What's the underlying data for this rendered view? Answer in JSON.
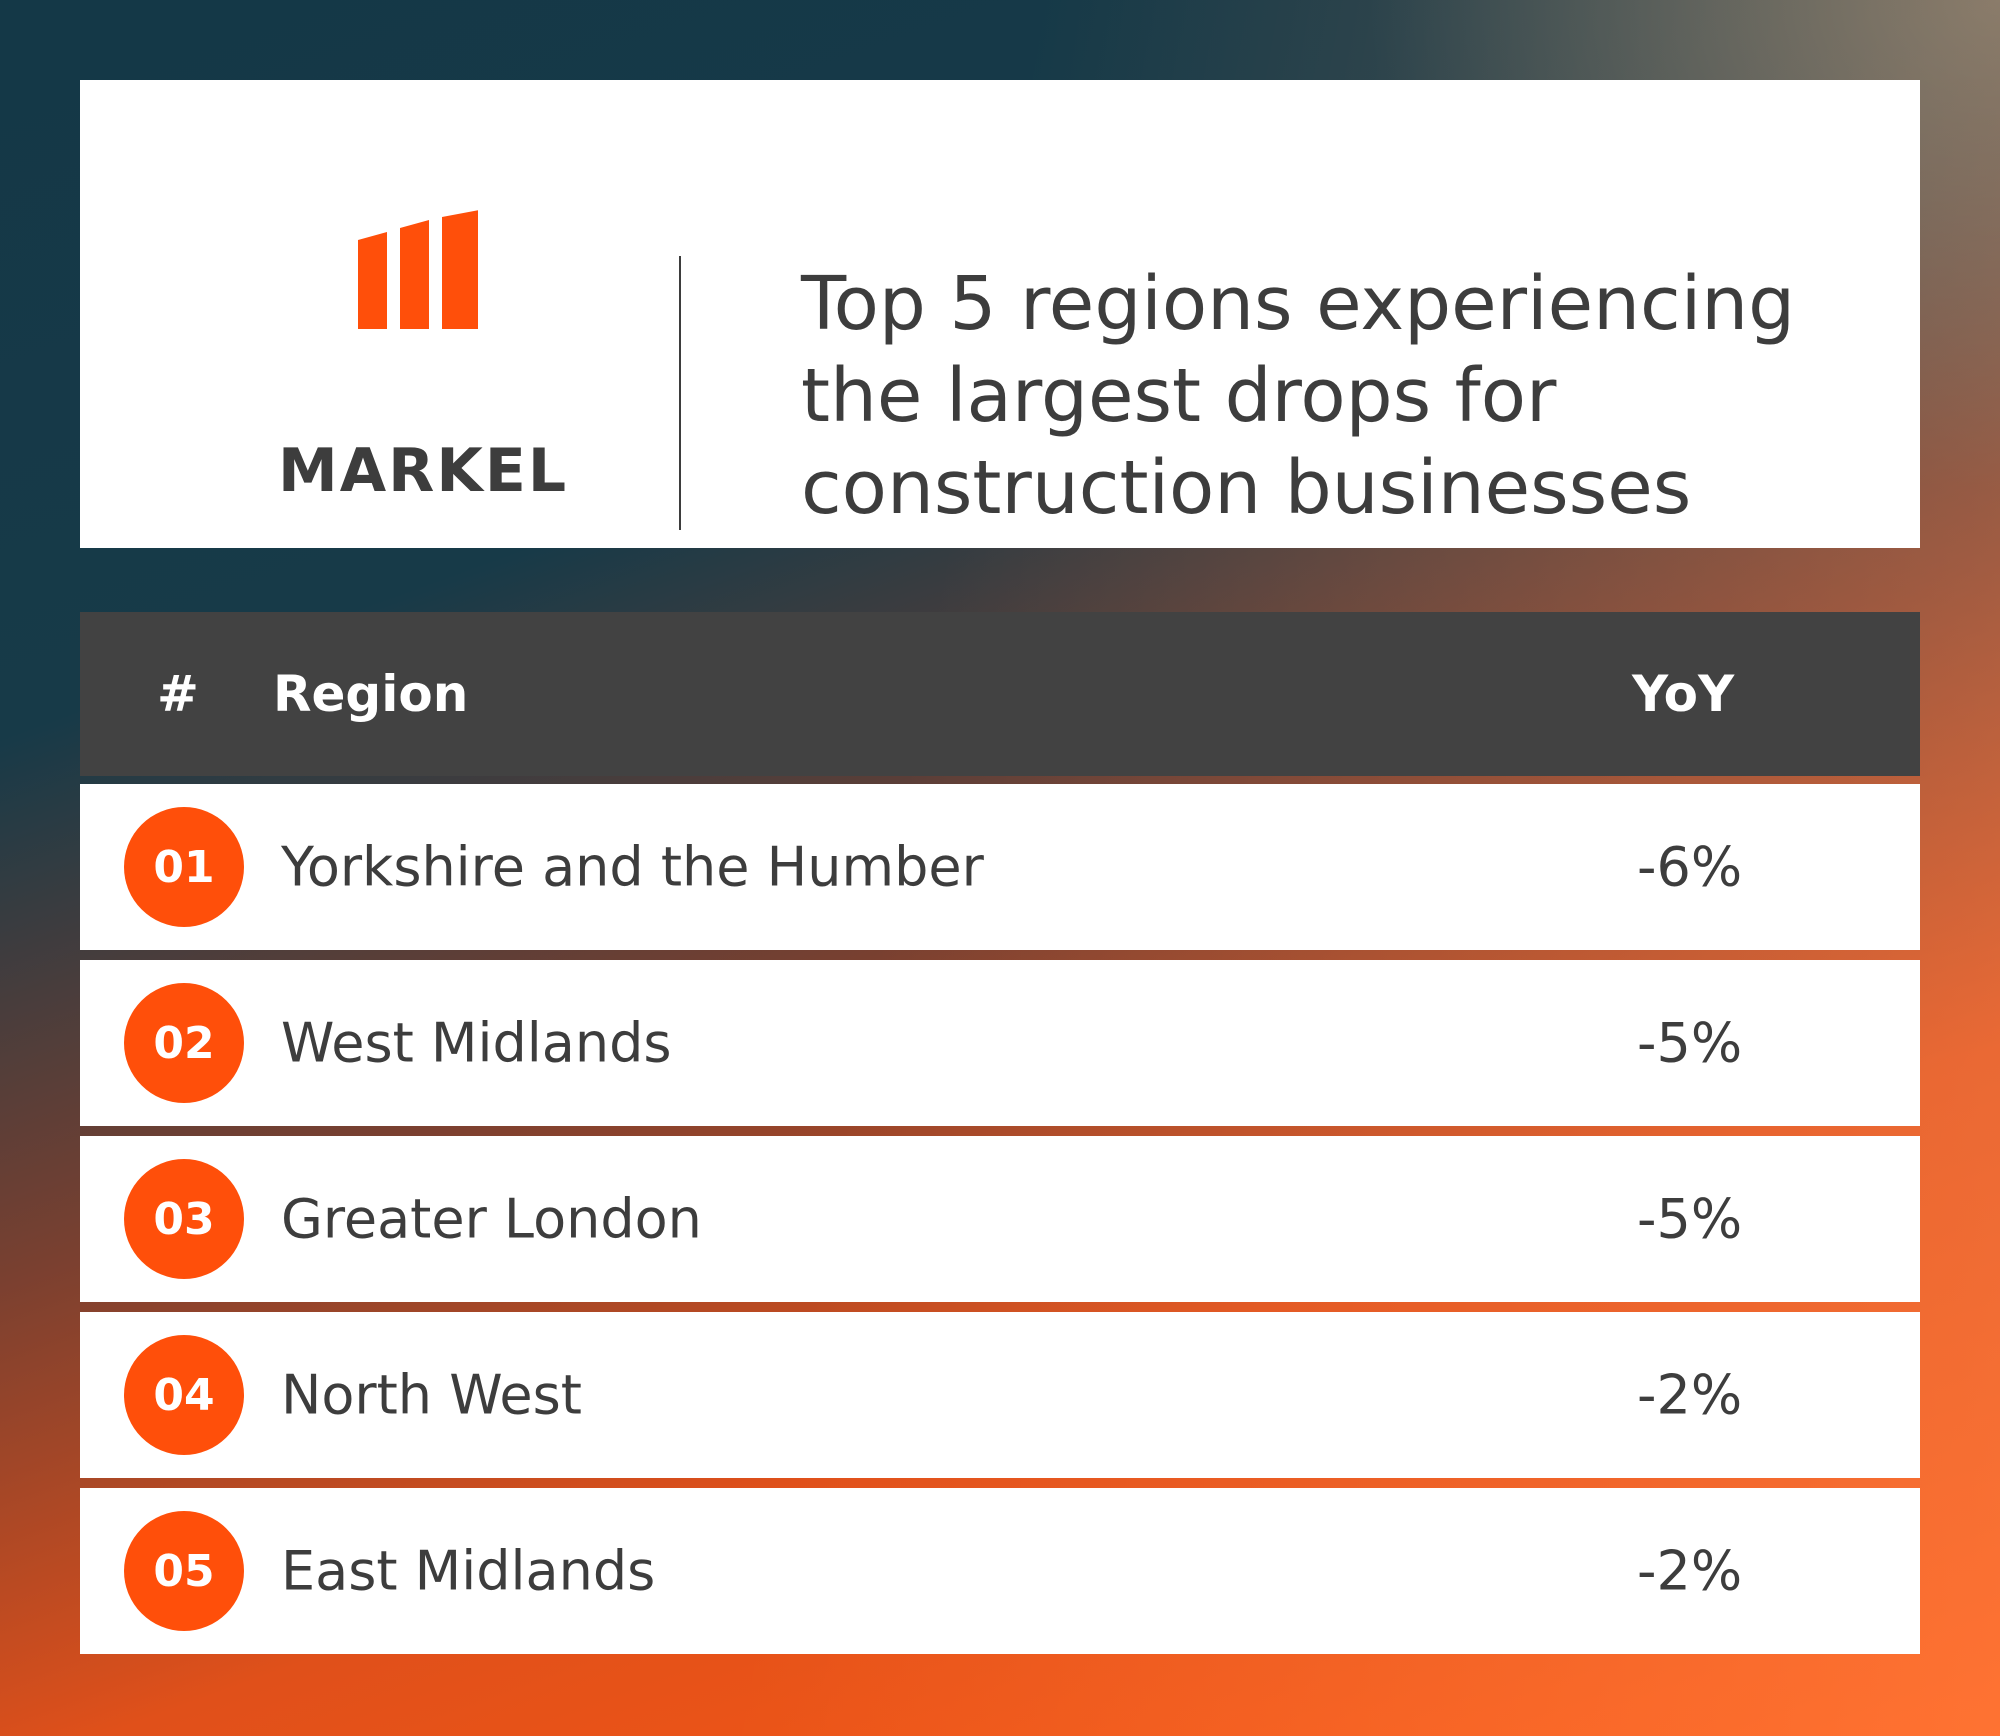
{
  "header": {
    "logo_text": "MARKEL",
    "title_lines": [
      "Top 5 regions experiencing",
      "the largest drops for",
      "construction businesses"
    ]
  },
  "table": {
    "columns": [
      "#",
      "Region",
      "YoY"
    ],
    "rows": [
      [
        "01",
        "Yorkshire and the Humber",
        "-6%"
      ],
      [
        "02",
        "West Midlands",
        "-5%"
      ],
      [
        "03",
        "Greater London",
        "-5%"
      ],
      [
        "04",
        "North West",
        "-2%"
      ],
      [
        "05",
        "East Midlands",
        "-2%"
      ]
    ]
  }
}
